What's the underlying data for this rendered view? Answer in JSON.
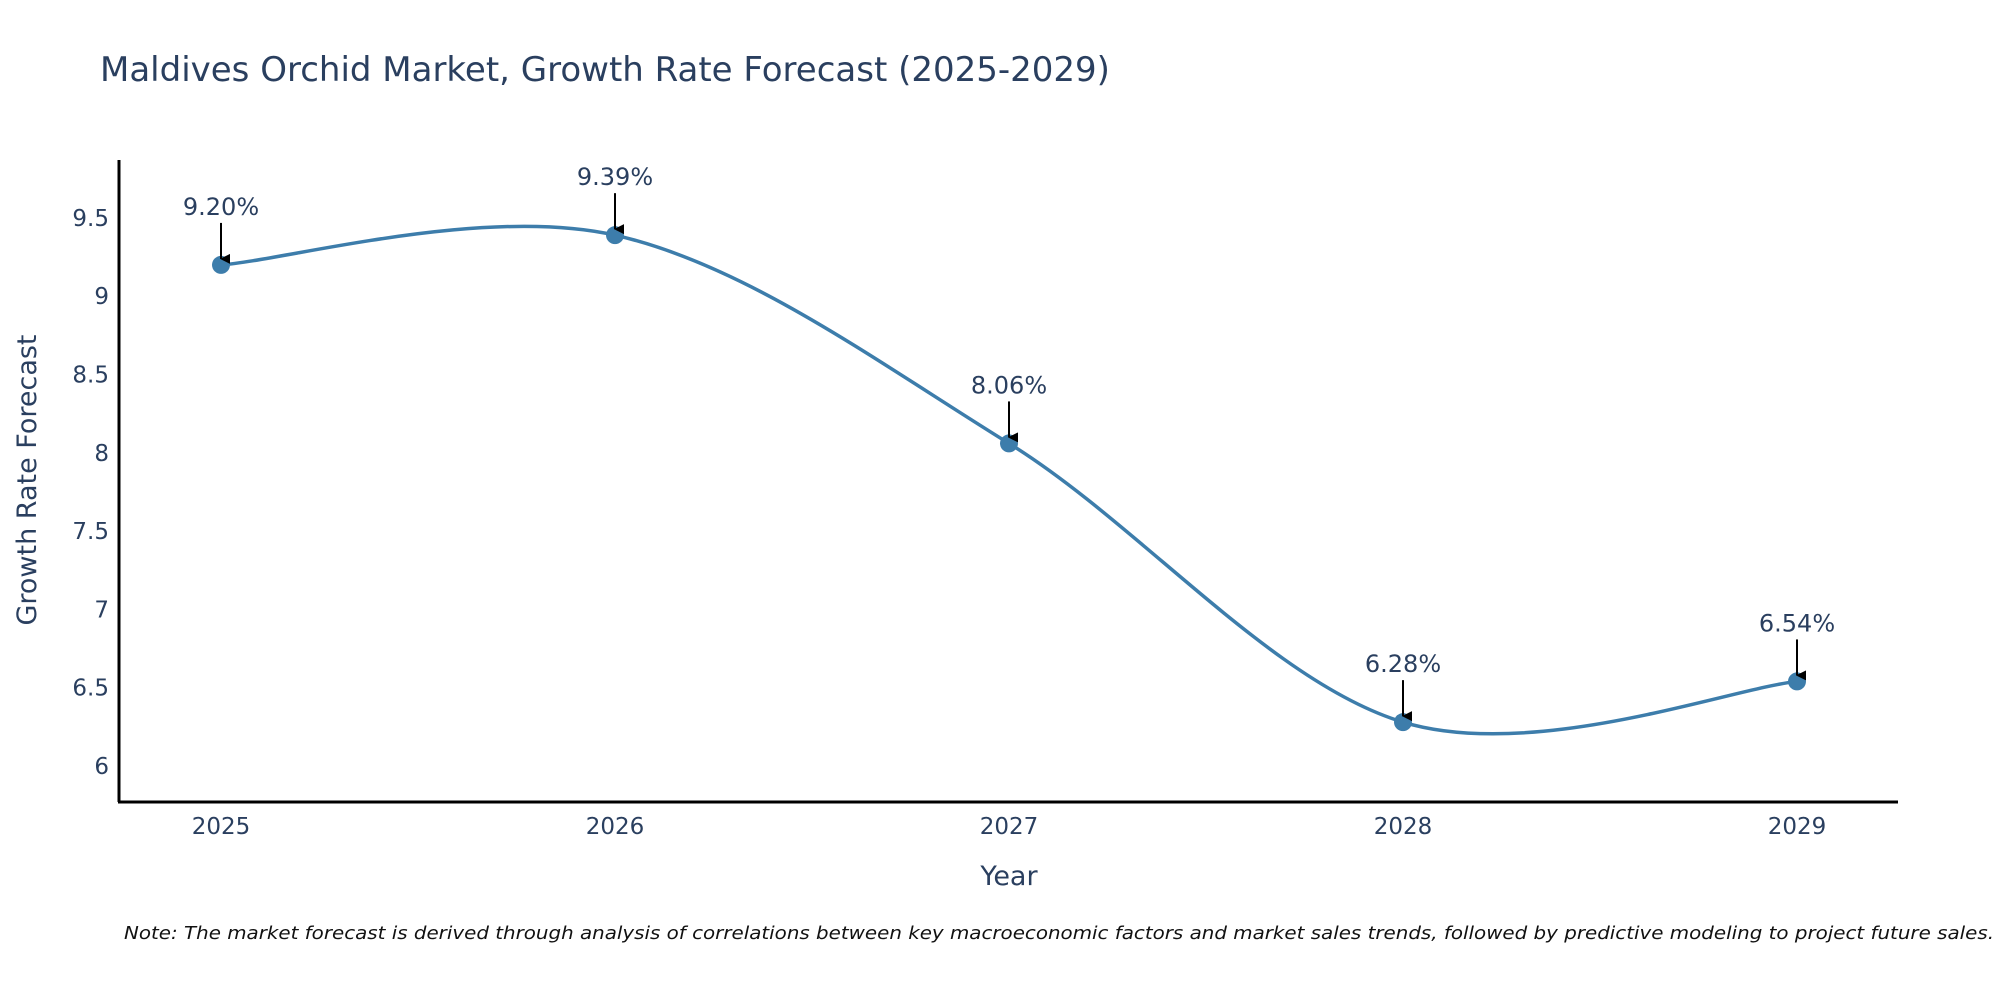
{
  "colors": {
    "series": "#3d7dab",
    "text": "#2a3f5f",
    "axis": "#000000",
    "arrow": "#000000"
  },
  "footnote": "Note: The market forecast is derived through analysis of correlations between key macroeconomic factors and market sales trends, followed by predictive modeling to project future sales.",
  "chart_data": {
    "type": "line",
    "title": "Maldives Orchid Market, Growth Rate Forecast (2025-2029)",
    "xlabel": "Year",
    "ylabel": "Growth Rate Forecast",
    "categories": [
      "2025",
      "2026",
      "2027",
      "2028",
      "2029"
    ],
    "series": [
      {
        "name": "Growth Rate Forecast",
        "values": [
          9.2,
          9.39,
          8.06,
          6.28,
          6.54
        ],
        "labels": [
          "9.20%",
          "9.39%",
          "8.06%",
          "6.28%",
          "6.54%"
        ]
      }
    ],
    "yticks": [
      "6",
      "6.5",
      "7",
      "7.5",
      "8",
      "8.5",
      "9",
      "9.5"
    ],
    "ytick_values": [
      6,
      6.5,
      7,
      7.5,
      8,
      8.5,
      9,
      9.5
    ],
    "ylim": [
      5.77,
      9.87
    ],
    "grid": false,
    "line_shape": "spline",
    "markers": true
  }
}
